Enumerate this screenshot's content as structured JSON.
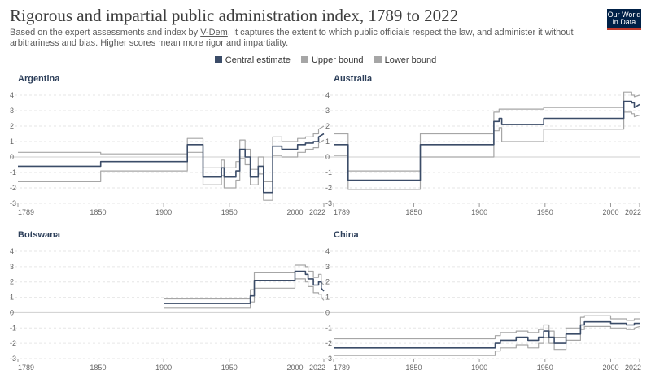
{
  "header": {
    "title": "Rigorous and impartial public administration index, 1789 to 2022",
    "subtitle_before": "Based on the expert assessments and index by ",
    "subtitle_link": "V-Dem",
    "subtitle_after": ". It captures the extent to which public officials respect the law, and administer it without arbitrariness and bias. Higher scores mean more rigor and impartiality.",
    "logo_line1": "Our World",
    "logo_line2": "in Data"
  },
  "colors": {
    "central": "#3b4c68",
    "bound": "#a6a6a6",
    "zero": "#cfcfcf",
    "grid": "#e6e6e6",
    "logo_bg": "#002147",
    "logo_bar": "#c0392b"
  },
  "legend": [
    {
      "label": "Central estimate",
      "color": "#3b4c68"
    },
    {
      "label": "Upper bound",
      "color": "#a6a6a6"
    },
    {
      "label": "Lower bound",
      "color": "#a6a6a6"
    }
  ],
  "chart_data": [
    {
      "type": "line",
      "title": "Argentina",
      "xlim": [
        1789,
        2022
      ],
      "ylim": [
        -3,
        4
      ],
      "xticks": [
        1789,
        1850,
        1900,
        1950,
        2000,
        2022
      ],
      "yticks": [
        -3,
        -2,
        -1,
        0,
        1,
        2,
        3,
        4
      ],
      "series": [
        {
          "name": "Central estimate",
          "x": [
            1789,
            1852,
            1852,
            1918,
            1918,
            1930,
            1930,
            1944,
            1944,
            1946,
            1946,
            1955,
            1955,
            1958,
            1958,
            1962,
            1962,
            1966,
            1966,
            1972,
            1972,
            1976,
            1976,
            1983,
            1983,
            1990,
            1990,
            2002,
            2002,
            2008,
            2008,
            2014,
            2014,
            2018,
            2018,
            2022
          ],
          "y": [
            -0.6,
            -0.6,
            -0.3,
            -0.3,
            0.8,
            0.8,
            -1.3,
            -1.3,
            -0.7,
            -0.7,
            -1.3,
            -1.3,
            -0.9,
            -0.9,
            0.5,
            0.5,
            0,
            0,
            -1.3,
            -1.3,
            -0.6,
            -0.6,
            -2.3,
            -2.3,
            0.7,
            0.7,
            0.5,
            0.5,
            0.8,
            0.8,
            0.9,
            0.9,
            1,
            1,
            1.3,
            1.5
          ]
        },
        {
          "name": "Upper bound",
          "x": [
            1789,
            1852,
            1852,
            1918,
            1918,
            1930,
            1930,
            1944,
            1944,
            1946,
            1946,
            1955,
            1955,
            1958,
            1958,
            1962,
            1962,
            1966,
            1966,
            1972,
            1972,
            1976,
            1976,
            1983,
            1983,
            1990,
            1990,
            2002,
            2002,
            2008,
            2008,
            2014,
            2014,
            2018,
            2018,
            2022
          ],
          "y": [
            0.3,
            0.3,
            0.2,
            0.2,
            1.2,
            1.2,
            -0.7,
            -0.7,
            -0.2,
            -0.2,
            -0.7,
            -0.7,
            -0.3,
            -0.3,
            1.1,
            1.1,
            0.5,
            0.5,
            -0.8,
            -0.8,
            0,
            0,
            -1.6,
            -1.6,
            1.3,
            1.3,
            1,
            1,
            1.2,
            1.2,
            1.3,
            1.3,
            1.5,
            1.5,
            1.8,
            2
          ]
        },
        {
          "name": "Lower bound",
          "x": [
            1789,
            1852,
            1852,
            1918,
            1918,
            1930,
            1930,
            1944,
            1944,
            1946,
            1946,
            1955,
            1955,
            1958,
            1958,
            1962,
            1962,
            1966,
            1966,
            1972,
            1972,
            1976,
            1976,
            1983,
            1983,
            1990,
            1990,
            2002,
            2002,
            2008,
            2008,
            2014,
            2014,
            2018,
            2018,
            2022
          ],
          "y": [
            -1.6,
            -1.6,
            -0.9,
            -0.9,
            0.3,
            0.3,
            -1.8,
            -1.8,
            -1.2,
            -1.2,
            -2,
            -2,
            -1.5,
            -1.5,
            -0.1,
            -0.1,
            -0.5,
            -0.5,
            -1.8,
            -1.8,
            -1.1,
            -1.1,
            -2.8,
            -2.8,
            0.1,
            0.1,
            0,
            0,
            0.3,
            0.3,
            0.5,
            0.5,
            0.6,
            0.6,
            0.9,
            1.1
          ]
        }
      ]
    },
    {
      "type": "line",
      "title": "Australia",
      "xlim": [
        1789,
        2022
      ],
      "ylim": [
        -3,
        4
      ],
      "xticks": [
        1789,
        1850,
        1900,
        1950,
        2000,
        2022
      ],
      "yticks": [
        -3,
        -2,
        -1,
        0,
        1,
        2,
        3,
        4
      ],
      "series": [
        {
          "name": "Central estimate",
          "x": [
            1789,
            1800,
            1800,
            1855,
            1855,
            1911,
            1911,
            1915,
            1915,
            1917,
            1917,
            1949,
            1949,
            2010,
            2010,
            2016,
            2016,
            2018,
            2018,
            2022
          ],
          "y": [
            0.8,
            0.8,
            -1.5,
            -1.5,
            0.8,
            0.8,
            2.3,
            2.3,
            2.5,
            2.5,
            2.1,
            2.1,
            2.5,
            2.5,
            3.6,
            3.6,
            3.5,
            3.5,
            3.2,
            3.4
          ]
        },
        {
          "name": "Upper bound",
          "x": [
            1789,
            1800,
            1800,
            1855,
            1855,
            1911,
            1911,
            1915,
            1915,
            1917,
            1917,
            1949,
            1949,
            2010,
            2010,
            2016,
            2016,
            2018,
            2018,
            2022
          ],
          "y": [
            1.5,
            1.5,
            -0.9,
            -0.9,
            1.5,
            1.5,
            2.9,
            2.9,
            3.1,
            3.1,
            3.1,
            3.1,
            3.2,
            3.2,
            4.2,
            4.2,
            4,
            4,
            3.9,
            4
          ]
        },
        {
          "name": "Lower bound",
          "x": [
            1789,
            1800,
            1800,
            1855,
            1855,
            1911,
            1911,
            1915,
            1915,
            1917,
            1917,
            1949,
            1949,
            2010,
            2010,
            2016,
            2016,
            2018,
            2018,
            2022
          ],
          "y": [
            0.1,
            0.1,
            -2.1,
            -2.1,
            0,
            0,
            1.7,
            1.7,
            1.9,
            1.9,
            1,
            1,
            1.8,
            1.8,
            2.9,
            2.9,
            2.8,
            2.8,
            2.6,
            2.7
          ]
        }
      ]
    },
    {
      "type": "line",
      "title": "Botswana",
      "xlim": [
        1789,
        2022
      ],
      "ylim": [
        -3,
        4
      ],
      "xticks": [
        1789,
        1850,
        1900,
        1950,
        2000,
        2022
      ],
      "yticks": [
        -3,
        -2,
        -1,
        0,
        1,
        2,
        3,
        4
      ],
      "series": [
        {
          "name": "Central estimate",
          "x": [
            1900,
            1966,
            1966,
            1969,
            1969,
            2000,
            2000,
            2008,
            2008,
            2010,
            2010,
            2014,
            2014,
            2018,
            2018,
            2020,
            2020,
            2022
          ],
          "y": [
            0.6,
            0.6,
            1.1,
            1.1,
            2.1,
            2.1,
            2.7,
            2.7,
            2.5,
            2.5,
            2.2,
            2.2,
            1.8,
            1.8,
            2.0,
            2.0,
            1.6,
            1.4
          ]
        },
        {
          "name": "Upper bound",
          "x": [
            1900,
            1966,
            1966,
            1969,
            1969,
            2000,
            2000,
            2008,
            2008,
            2010,
            2010,
            2014,
            2014,
            2018,
            2018,
            2020,
            2020,
            2022
          ],
          "y": [
            0.9,
            0.9,
            1.5,
            1.5,
            2.6,
            2.6,
            3.1,
            3.1,
            3.0,
            3.0,
            2.7,
            2.7,
            2.3,
            2.3,
            2.5,
            2.5,
            2.0,
            1.8
          ]
        },
        {
          "name": "Lower bound",
          "x": [
            1900,
            1966,
            1966,
            1969,
            1969,
            2000,
            2000,
            2008,
            2008,
            2010,
            2010,
            2014,
            2014,
            2018,
            2018,
            2020,
            2020,
            2022
          ],
          "y": [
            0.3,
            0.3,
            0.7,
            0.7,
            1.6,
            1.6,
            2.2,
            2.2,
            2.0,
            2.0,
            1.7,
            1.7,
            1.3,
            1.3,
            1.2,
            1.2,
            1.0,
            0.8
          ]
        }
      ]
    },
    {
      "type": "line",
      "title": "China",
      "xlim": [
        1789,
        2022
      ],
      "ylim": [
        -3,
        4
      ],
      "xticks": [
        1789,
        1850,
        1900,
        1950,
        2000,
        2022
      ],
      "yticks": [
        -3,
        -2,
        -1,
        0,
        1,
        2,
        3,
        4
      ],
      "series": [
        {
          "name": "Central estimate",
          "x": [
            1789,
            1912,
            1912,
            1916,
            1916,
            1928,
            1928,
            1937,
            1937,
            1945,
            1945,
            1949,
            1949,
            1953,
            1953,
            1957,
            1957,
            1966,
            1966,
            1977,
            1977,
            1980,
            1980,
            2000,
            2000,
            2012,
            2012,
            2018,
            2018,
            2022
          ],
          "y": [
            -2.3,
            -2.3,
            -2.0,
            -2.0,
            -1.8,
            -1.8,
            -1.6,
            -1.6,
            -1.8,
            -1.8,
            -1.6,
            -1.6,
            -1.2,
            -1.2,
            -1.6,
            -1.6,
            -2.0,
            -2.0,
            -1.4,
            -1.4,
            -0.8,
            -0.8,
            -0.6,
            -0.6,
            -0.7,
            -0.7,
            -0.8,
            -0.8,
            -0.7,
            -0.7
          ]
        },
        {
          "name": "Upper bound",
          "x": [
            1789,
            1912,
            1912,
            1916,
            1916,
            1928,
            1928,
            1937,
            1937,
            1945,
            1945,
            1949,
            1949,
            1953,
            1953,
            1957,
            1957,
            1966,
            1966,
            1977,
            1977,
            1980,
            1980,
            2000,
            2000,
            2012,
            2012,
            2018,
            2018,
            2022
          ],
          "y": [
            -1.7,
            -1.7,
            -1.5,
            -1.5,
            -1.3,
            -1.3,
            -1.2,
            -1.2,
            -1.3,
            -1.3,
            -1.1,
            -1.1,
            -0.8,
            -0.8,
            -1.2,
            -1.2,
            -1.6,
            -1.6,
            -1.0,
            -1.0,
            -0.3,
            -0.3,
            -0.2,
            -0.2,
            -0.4,
            -0.4,
            -0.5,
            -0.5,
            -0.4,
            -0.4
          ]
        },
        {
          "name": "Lower bound",
          "x": [
            1789,
            1912,
            1912,
            1916,
            1916,
            1928,
            1928,
            1937,
            1937,
            1945,
            1945,
            1949,
            1949,
            1953,
            1953,
            1957,
            1957,
            1966,
            1966,
            1977,
            1977,
            1980,
            1980,
            2000,
            2000,
            2012,
            2012,
            2018,
            2018,
            2022
          ],
          "y": [
            -2.8,
            -2.8,
            -2.5,
            -2.5,
            -2.3,
            -2.3,
            -2.1,
            -2.1,
            -2.3,
            -2.3,
            -2.0,
            -2.0,
            -1.6,
            -1.6,
            -2.0,
            -2.0,
            -2.4,
            -2.4,
            -1.8,
            -1.8,
            -1.1,
            -1.1,
            -0.9,
            -0.9,
            -1.0,
            -1.0,
            -1.1,
            -1.1,
            -1.0,
            -0.9
          ]
        }
      ]
    }
  ]
}
